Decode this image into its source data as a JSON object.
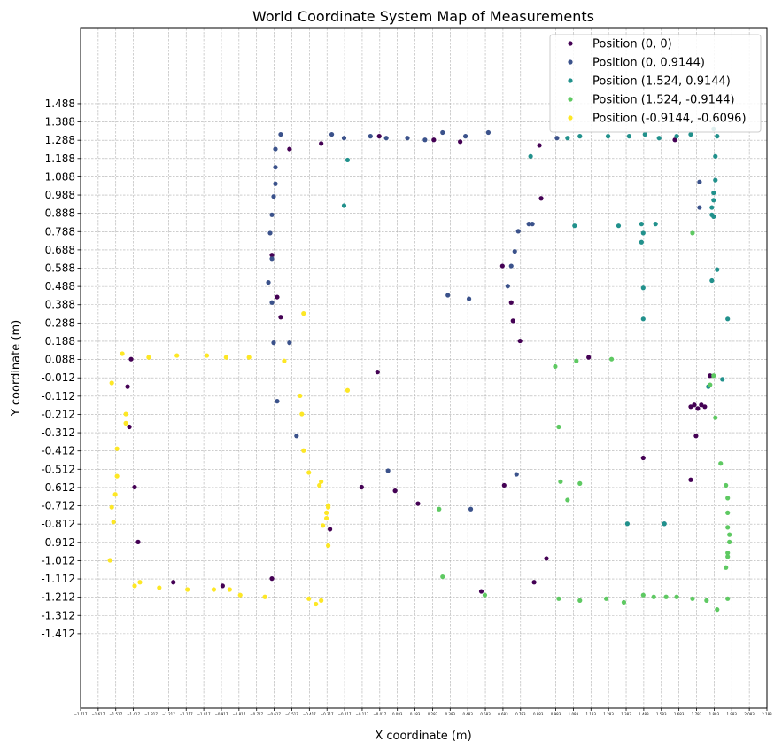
{
  "chart_data": {
    "type": "scatter",
    "title": "World Coordinate System Map of Measurements",
    "xlabel": "X coordinate (m)",
    "ylabel": "Y coordinate (m)",
    "xlim": [
      -1.717,
      2.183
    ],
    "ylim": [
      -1.82,
      1.9
    ],
    "grid": true,
    "legend_position": "top-right",
    "x_ticks": [
      "-1.717",
      "-1.617",
      "-1.517",
      "-1.417",
      "-1.317",
      "-1.217",
      "-1.117",
      "-1.017",
      "-0.917",
      "-0.817",
      "-0.717",
      "-0.617",
      "-0.517",
      "-0.417",
      "-0.317",
      "-0.217",
      "-0.117",
      "-0.017",
      "0.083",
      "0.183",
      "0.283",
      "0.383",
      "0.483",
      "0.583",
      "0.683",
      "0.783",
      "0.883",
      "0.983",
      "1.083",
      "1.183",
      "1.283",
      "1.383",
      "1.483",
      "1.583",
      "1.683",
      "1.783",
      "1.883",
      "1.983",
      "2.083",
      "2.183"
    ],
    "y_ticks": [
      "1.488",
      "1.388",
      "1.288",
      "1.188",
      "1.088",
      "0.988",
      "0.888",
      "0.788",
      "0.688",
      "0.588",
      "0.488",
      "0.388",
      "0.288",
      "0.188",
      "0.088",
      "-0.012",
      "-0.112",
      "-0.212",
      "-0.312",
      "-0.412",
      "-0.512",
      "-0.612",
      "-0.712",
      "-0.812",
      "-0.912",
      "-1.012",
      "-1.112",
      "-1.212",
      "-1.312",
      "-1.412"
    ],
    "series": [
      {
        "name": "Position (0, 0)",
        "color": "#440154",
        "points": [
          [
            -1.43,
            0.09
          ],
          [
            -1.45,
            -0.06
          ],
          [
            -1.44,
            -0.28
          ],
          [
            -1.41,
            -0.61
          ],
          [
            -1.39,
            -0.91
          ],
          [
            -1.19,
            -1.13
          ],
          [
            -0.91,
            -1.15
          ],
          [
            -0.63,
            -1.11
          ],
          [
            -0.63,
            0.66
          ],
          [
            -0.6,
            0.43
          ],
          [
            -0.58,
            0.32
          ],
          [
            -0.53,
            1.24
          ],
          [
            -0.35,
            1.27
          ],
          [
            -0.3,
            -0.84
          ],
          [
            -0.12,
            -0.61
          ],
          [
            -0.02,
            1.31
          ],
          [
            -0.03,
            0.02
          ],
          [
            0.07,
            -0.63
          ],
          [
            0.2,
            -0.7
          ],
          [
            0.29,
            1.29
          ],
          [
            0.44,
            1.28
          ],
          [
            0.56,
            -1.18
          ],
          [
            0.68,
            0.6
          ],
          [
            0.69,
            -0.6
          ],
          [
            0.73,
            0.4
          ],
          [
            0.74,
            0.3
          ],
          [
            0.78,
            0.19
          ],
          [
            0.86,
            -1.13
          ],
          [
            0.89,
            1.26
          ],
          [
            0.9,
            0.97
          ],
          [
            0.93,
            -1.0
          ],
          [
            1.17,
            0.1
          ],
          [
            1.48,
            -0.45
          ],
          [
            1.66,
            1.29
          ],
          [
            1.75,
            -0.57
          ],
          [
            1.78,
            -0.33
          ],
          [
            1.86,
            0.0
          ],
          [
            1.75,
            -0.17
          ],
          [
            1.77,
            -0.16
          ],
          [
            1.79,
            -0.18
          ],
          [
            1.81,
            -0.16
          ],
          [
            1.83,
            -0.17
          ]
        ]
      },
      {
        "name": "Position (0, 0.9144)",
        "color": "#3b528b",
        "points": [
          [
            -0.61,
            1.24
          ],
          [
            -0.61,
            1.14
          ],
          [
            -0.61,
            1.05
          ],
          [
            -0.62,
            0.98
          ],
          [
            -0.63,
            0.88
          ],
          [
            -0.64,
            0.78
          ],
          [
            -0.63,
            0.64
          ],
          [
            -0.65,
            0.51
          ],
          [
            -0.63,
            0.4
          ],
          [
            -0.62,
            0.18
          ],
          [
            -0.53,
            0.18
          ],
          [
            -0.58,
            1.32
          ],
          [
            -0.6,
            -0.14
          ],
          [
            -0.49,
            -0.33
          ],
          [
            -0.29,
            1.32
          ],
          [
            -0.22,
            1.3
          ],
          [
            -0.07,
            1.31
          ],
          [
            0.02,
            1.3
          ],
          [
            0.14,
            1.3
          ],
          [
            0.24,
            1.29
          ],
          [
            0.34,
            1.33
          ],
          [
            0.47,
            1.31
          ],
          [
            0.6,
            1.33
          ],
          [
            0.03,
            -0.52
          ],
          [
            0.37,
            0.44
          ],
          [
            0.49,
            0.42
          ],
          [
            0.5,
            -0.73
          ],
          [
            0.71,
            0.49
          ],
          [
            0.73,
            0.6
          ],
          [
            0.75,
            0.68
          ],
          [
            0.77,
            0.79
          ],
          [
            0.83,
            0.83
          ],
          [
            0.85,
            0.83
          ],
          [
            0.76,
            -0.54
          ],
          [
            0.99,
            1.3
          ],
          [
            1.6,
            -0.81
          ],
          [
            1.8,
            1.06
          ],
          [
            1.8,
            0.92
          ]
        ]
      },
      {
        "name": "Position (1.524, 0.9144)",
        "color": "#21918c",
        "points": [
          [
            -0.2,
            1.18
          ],
          [
            -0.22,
            0.93
          ],
          [
            0.84,
            1.2
          ],
          [
            1.05,
            1.3
          ],
          [
            1.12,
            1.31
          ],
          [
            1.28,
            1.31
          ],
          [
            1.4,
            1.31
          ],
          [
            1.49,
            1.32
          ],
          [
            1.57,
            1.3
          ],
          [
            1.67,
            1.31
          ],
          [
            1.75,
            1.32
          ],
          [
            1.88,
            1.35
          ],
          [
            1.9,
            1.31
          ],
          [
            1.89,
            1.2
          ],
          [
            1.89,
            1.07
          ],
          [
            1.88,
            1.0
          ],
          [
            1.88,
            0.96
          ],
          [
            1.87,
            0.92
          ],
          [
            1.87,
            0.88
          ],
          [
            1.88,
            0.87
          ],
          [
            1.09,
            0.82
          ],
          [
            1.34,
            0.82
          ],
          [
            1.47,
            0.83
          ],
          [
            1.55,
            0.83
          ],
          [
            1.48,
            0.78
          ],
          [
            1.47,
            0.73
          ],
          [
            1.48,
            0.48
          ],
          [
            1.48,
            0.31
          ],
          [
            1.87,
            0.52
          ],
          [
            1.9,
            0.58
          ],
          [
            1.96,
            0.31
          ],
          [
            1.39,
            -0.81
          ],
          [
            1.6,
            -0.81
          ],
          [
            1.85,
            -0.06
          ],
          [
            1.93,
            -0.02
          ]
        ]
      },
      {
        "name": "Position (1.524, -0.9144)",
        "color": "#5ec962",
        "points": [
          [
            0.98,
            0.05
          ],
          [
            1.1,
            0.08
          ],
          [
            1.3,
            0.09
          ],
          [
            1.76,
            0.78
          ],
          [
            1.88,
            0.0
          ],
          [
            1.86,
            -0.05
          ],
          [
            1.89,
            -0.23
          ],
          [
            1.92,
            -0.48
          ],
          [
            1.0,
            -0.28
          ],
          [
            1.01,
            -0.58
          ],
          [
            1.05,
            -0.68
          ],
          [
            1.12,
            -0.59
          ],
          [
            0.32,
            -0.73
          ],
          [
            0.34,
            -1.1
          ],
          [
            0.58,
            -1.2
          ],
          [
            1.0,
            -1.22
          ],
          [
            1.12,
            -1.23
          ],
          [
            1.27,
            -1.22
          ],
          [
            1.37,
            -1.24
          ],
          [
            1.48,
            -1.2
          ],
          [
            1.54,
            -1.21
          ],
          [
            1.61,
            -1.21
          ],
          [
            1.67,
            -1.21
          ],
          [
            1.76,
            -1.22
          ],
          [
            1.84,
            -1.23
          ],
          [
            1.9,
            -1.28
          ],
          [
            1.96,
            -1.22
          ],
          [
            1.95,
            -0.6
          ],
          [
            1.96,
            -0.67
          ],
          [
            1.96,
            -0.75
          ],
          [
            1.96,
            -0.83
          ],
          [
            1.97,
            -0.87
          ],
          [
            1.97,
            -0.91
          ],
          [
            1.96,
            -0.97
          ],
          [
            1.96,
            -0.99
          ],
          [
            1.95,
            -1.05
          ]
        ]
      },
      {
        "name": "Position (-0.9144, -0.6096)",
        "color": "#fde725",
        "points": [
          [
            -1.54,
            -0.04
          ],
          [
            -1.48,
            0.12
          ],
          [
            -1.33,
            0.1
          ],
          [
            -1.17,
            0.11
          ],
          [
            -1.0,
            0.11
          ],
          [
            -0.89,
            0.1
          ],
          [
            -0.76,
            0.1
          ],
          [
            -0.56,
            0.08
          ],
          [
            -0.45,
            0.34
          ],
          [
            -0.2,
            -0.08
          ],
          [
            -0.46,
            -0.21
          ],
          [
            -0.47,
            -0.11
          ],
          [
            -0.45,
            -0.41
          ],
          [
            -0.42,
            -0.53
          ],
          [
            -0.35,
            -0.58
          ],
          [
            -0.36,
            -0.6
          ],
          [
            -0.31,
            -0.71
          ],
          [
            -0.31,
            -0.72
          ],
          [
            -0.32,
            -0.75
          ],
          [
            -0.32,
            -0.78
          ],
          [
            -0.34,
            -0.82
          ],
          [
            -0.31,
            -0.93
          ],
          [
            -1.46,
            -0.21
          ],
          [
            -1.46,
            -0.26
          ],
          [
            -1.51,
            -0.4
          ],
          [
            -1.51,
            -0.55
          ],
          [
            -1.52,
            -0.65
          ],
          [
            -1.54,
            -0.72
          ],
          [
            -1.53,
            -0.8
          ],
          [
            -1.55,
            -1.01
          ],
          [
            -1.41,
            -1.15
          ],
          [
            -1.38,
            -1.13
          ],
          [
            -1.27,
            -1.16
          ],
          [
            -1.11,
            -1.17
          ],
          [
            -0.96,
            -1.17
          ],
          [
            -0.87,
            -1.17
          ],
          [
            -0.81,
            -1.2
          ],
          [
            -0.67,
            -1.21
          ],
          [
            -0.42,
            -1.22
          ],
          [
            -0.38,
            -1.25
          ],
          [
            -0.35,
            -1.23
          ]
        ]
      }
    ]
  }
}
